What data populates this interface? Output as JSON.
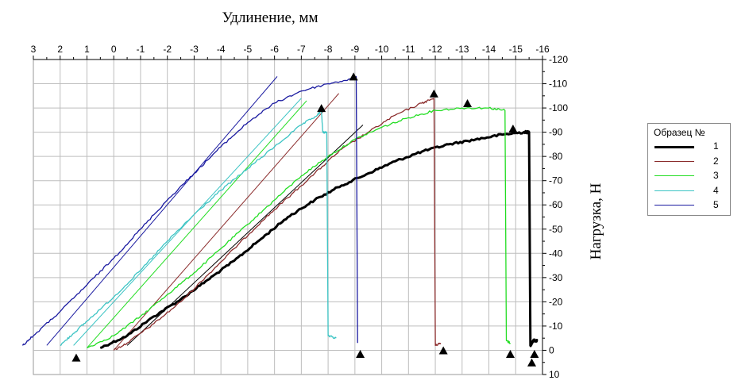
{
  "chart_data": {
    "type": "line",
    "xlabel": "Удлинение, мм",
    "ylabel": "Нагрузка, Н",
    "x_ticks": [
      "3",
      "2",
      "1",
      "0",
      "-1",
      "-2",
      "-3",
      "-4",
      "-5",
      "-6",
      "-7",
      "-8",
      "-9",
      "-10",
      "-11",
      "-12",
      "-13",
      "-14",
      "-15",
      "-16"
    ],
    "y_ticks": [
      "-120",
      "-110",
      "-100",
      "-90",
      "-80",
      "-70",
      "-60",
      "-50",
      "-40",
      "-30",
      "-20",
      "-10",
      "0",
      "10"
    ],
    "xlim": [
      3,
      -16
    ],
    "ylim": [
      10,
      -120
    ],
    "grid": true,
    "legend": {
      "title": "Образец №",
      "placement": "right",
      "entries": [
        "1",
        "2",
        "3",
        "4",
        "5"
      ]
    },
    "series": [
      {
        "name": "1",
        "color": "#000000",
        "width": 3,
        "points": [
          [
            0.5,
            -1
          ],
          [
            -0.5,
            -6
          ],
          [
            -1.5,
            -14
          ],
          [
            -2.5,
            -21
          ],
          [
            -3.5,
            -29
          ],
          [
            -4.5,
            -37
          ],
          [
            -5.5,
            -46
          ],
          [
            -6.5,
            -55
          ],
          [
            -7.5,
            -62
          ],
          [
            -8.5,
            -68
          ],
          [
            -9.5,
            -73
          ],
          [
            -10.5,
            -78
          ],
          [
            -11.5,
            -82
          ],
          [
            -12.5,
            -85
          ],
          [
            -13.5,
            -87
          ],
          [
            -14.5,
            -89
          ],
          [
            -15.3,
            -90
          ],
          [
            -15.5,
            -90
          ],
          [
            -15.55,
            -2
          ],
          [
            -15.65,
            -4
          ],
          [
            -15.8,
            -4
          ]
        ],
        "tangent": [
          [
            -0.5,
            -2
          ],
          [
            -9.3,
            -93
          ]
        ],
        "markers": [
          [
            -14.9,
            -91.5
          ],
          [
            -15.7,
            1.5
          ],
          [
            -15.6,
            5
          ]
        ]
      },
      {
        "name": "2",
        "color": "#8b2c2c",
        "width": 1.3,
        "points": [
          [
            0,
            0
          ],
          [
            -0.5,
            -3
          ],
          [
            -1.5,
            -11
          ],
          [
            -2.5,
            -20
          ],
          [
            -3.5,
            -31
          ],
          [
            -4.5,
            -42
          ],
          [
            -5.5,
            -53
          ],
          [
            -6.5,
            -63
          ],
          [
            -7.5,
            -73
          ],
          [
            -8.5,
            -83
          ],
          [
            -9.5,
            -90
          ],
          [
            -10.5,
            -97
          ],
          [
            -11.5,
            -102
          ],
          [
            -11.95,
            -104
          ],
          [
            -12.0,
            -2
          ],
          [
            -12.2,
            -3
          ]
        ],
        "tangent": [
          [
            0,
            0
          ],
          [
            -8.4,
            -106
          ]
        ],
        "markers": [
          [
            -11.95,
            -106
          ],
          [
            -12.3,
            0
          ]
        ]
      },
      {
        "name": "3",
        "color": "#22dd22",
        "width": 1.3,
        "points": [
          [
            1,
            -1
          ],
          [
            0,
            -6
          ],
          [
            -1,
            -14
          ],
          [
            -2,
            -23
          ],
          [
            -3,
            -32
          ],
          [
            -4,
            -42
          ],
          [
            -5,
            -52
          ],
          [
            -6,
            -62
          ],
          [
            -7,
            -72
          ],
          [
            -8,
            -80
          ],
          [
            -9,
            -87
          ],
          [
            -10,
            -92
          ],
          [
            -11,
            -96
          ],
          [
            -12,
            -99
          ],
          [
            -13,
            -100
          ],
          [
            -14,
            -100
          ],
          [
            -14.6,
            -99
          ],
          [
            -14.65,
            -4
          ],
          [
            -14.8,
            -3
          ]
        ],
        "tangent": [
          [
            1,
            -1
          ],
          [
            -7.2,
            -103
          ]
        ],
        "markers": [
          [
            -13.2,
            -102
          ],
          [
            -14.8,
            1.5
          ]
        ]
      },
      {
        "name": "4",
        "color": "#3cc4c4",
        "width": 1.3,
        "points": [
          [
            2,
            -2
          ],
          [
            1.5,
            -7
          ],
          [
            1,
            -12
          ],
          [
            0,
            -22
          ],
          [
            -1,
            -33
          ],
          [
            -2,
            -45
          ],
          [
            -3,
            -56
          ],
          [
            -4,
            -66
          ],
          [
            -5,
            -75
          ],
          [
            -6,
            -84
          ],
          [
            -7,
            -93
          ],
          [
            -7.6,
            -97
          ],
          [
            -7.75,
            -99
          ],
          [
            -7.8,
            -90
          ],
          [
            -7.95,
            -90
          ],
          [
            -8.0,
            -6
          ],
          [
            -8.3,
            -5
          ]
        ],
        "tangent": [
          [
            1.5,
            -2
          ],
          [
            -7.0,
            -104
          ]
        ],
        "markers": [
          [
            -7.75,
            -100
          ],
          [
            1.4,
            3
          ]
        ]
      },
      {
        "name": "5",
        "color": "#1a1aa0",
        "width": 1.3,
        "points": [
          [
            3.4,
            -2
          ],
          [
            3,
            -6
          ],
          [
            2,
            -16
          ],
          [
            1,
            -27
          ],
          [
            0,
            -38
          ],
          [
            -1,
            -50
          ],
          [
            -2,
            -62
          ],
          [
            -3,
            -73
          ],
          [
            -4,
            -84
          ],
          [
            -5,
            -94
          ],
          [
            -6,
            -102
          ],
          [
            -7,
            -107
          ],
          [
            -8,
            -110
          ],
          [
            -8.9,
            -112
          ],
          [
            -9.05,
            -113
          ],
          [
            -9.1,
            -3
          ]
        ],
        "tangent": [
          [
            2.5,
            -2
          ],
          [
            -6.1,
            -113
          ]
        ],
        "markers": [
          [
            -8.95,
            -113
          ],
          [
            -9.2,
            1.5
          ]
        ]
      }
    ]
  }
}
